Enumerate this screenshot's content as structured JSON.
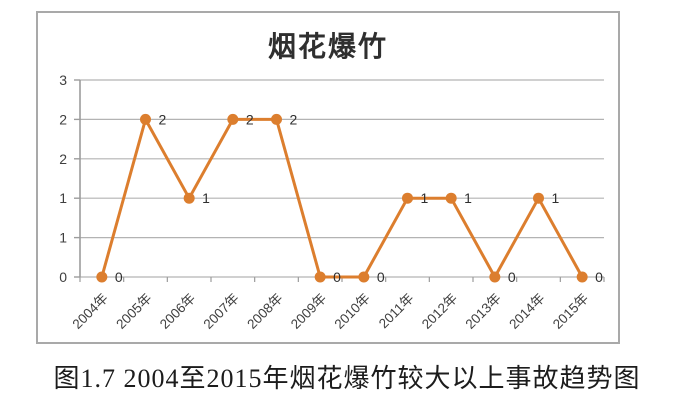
{
  "chart": {
    "title": "烟花爆竹",
    "caption": "图1.7 2004至2015年烟花爆竹较大以上事故趋势图"
  },
  "colors": {
    "series_orange": "#dc7e2e",
    "gridline_gray": "#b3b3b3",
    "axis_gray": "#9c9c9c",
    "tick_label_gray": "#3f3f3f",
    "data_label_dark": "#2f2f2f",
    "chart_border_gray": "#a9a9a9"
  },
  "chart_data": {
    "type": "line",
    "title": "烟花爆竹",
    "categories": [
      "2004年",
      "2005年",
      "2006年",
      "2007年",
      "2008年",
      "2009年",
      "2010年",
      "2011年",
      "2012年",
      "2013年",
      "2014年",
      "2015年"
    ],
    "values": [
      0,
      2,
      1,
      2,
      2,
      0,
      0,
      1,
      1,
      0,
      1,
      0
    ],
    "data_labels": [
      "0",
      "2",
      "1",
      "2",
      "2",
      "0",
      "0",
      "1",
      "1",
      "0",
      "1",
      "0"
    ],
    "xlabel": "",
    "ylabel": "",
    "ylim": [
      0,
      2.5
    ],
    "y_tick_interval": 0.5,
    "y_tick_labels_top_to_bottom": [
      "3",
      "2",
      "2",
      "1",
      "1",
      "0"
    ],
    "grid": "horizontal only",
    "legend": "none",
    "marker": "filled circle",
    "x_tick_label_rotation_deg": -45
  }
}
